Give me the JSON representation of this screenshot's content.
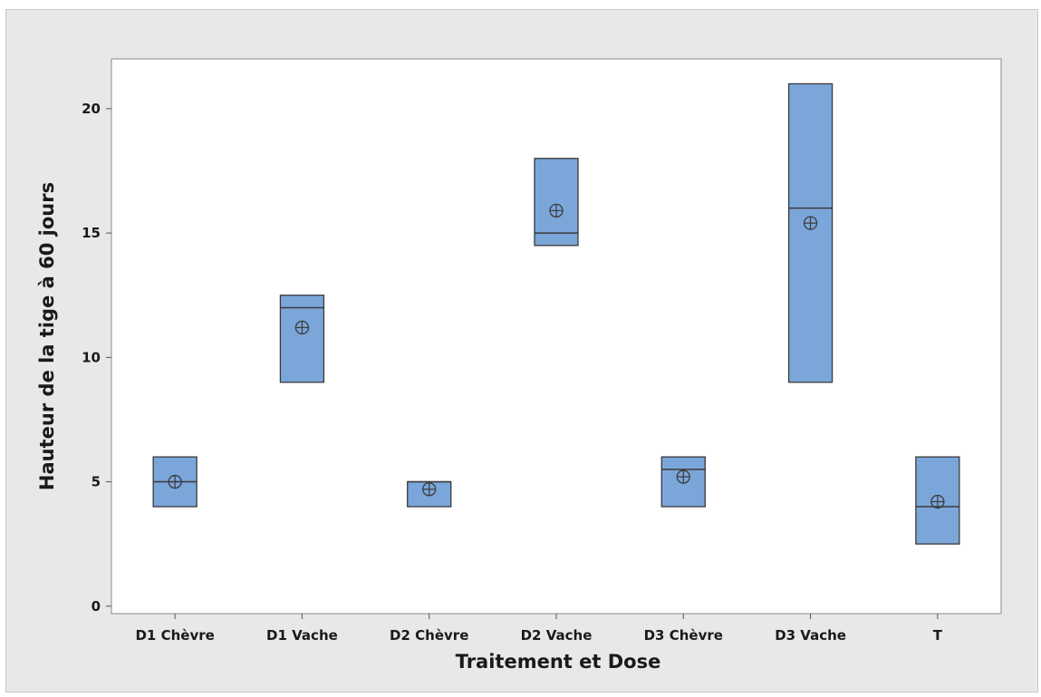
{
  "chart_data": {
    "type": "boxplot",
    "title": "",
    "xlabel": "Traitement et Dose",
    "ylabel": "Hauteur de la tige à 60 jours",
    "ylim": [
      -0.3,
      22
    ],
    "yticks": [
      0,
      5,
      10,
      15,
      20
    ],
    "grid": false,
    "legend": "none",
    "colors": {
      "box_fill": "#7ba6d9",
      "box_stroke": "#3a3a3a",
      "panel_bg": "#ffffff",
      "frame_bg": "#e8e8e8"
    },
    "categories": [
      "D1 Chèvre",
      "D1 Vache",
      "D2 Chèvre",
      "D2 Vache",
      "D3 Chèvre",
      "D3 Vache",
      "T"
    ],
    "boxes": [
      {
        "q1": 4,
        "median": 5,
        "q3": 6,
        "mean": 5.0
      },
      {
        "q1": 9,
        "median": 12,
        "q3": 12.5,
        "mean": 11.2
      },
      {
        "q1": 4,
        "median": 5,
        "q3": 5,
        "mean": 4.7
      },
      {
        "q1": 14.5,
        "median": 15,
        "q3": 18,
        "mean": 15.9
      },
      {
        "q1": 4,
        "median": 5.5,
        "q3": 6,
        "mean": 5.2
      },
      {
        "q1": 9,
        "median": 16,
        "q3": 21,
        "mean": 15.4
      },
      {
        "q1": 2.5,
        "median": 4,
        "q3": 6,
        "mean": 4.2
      }
    ]
  }
}
